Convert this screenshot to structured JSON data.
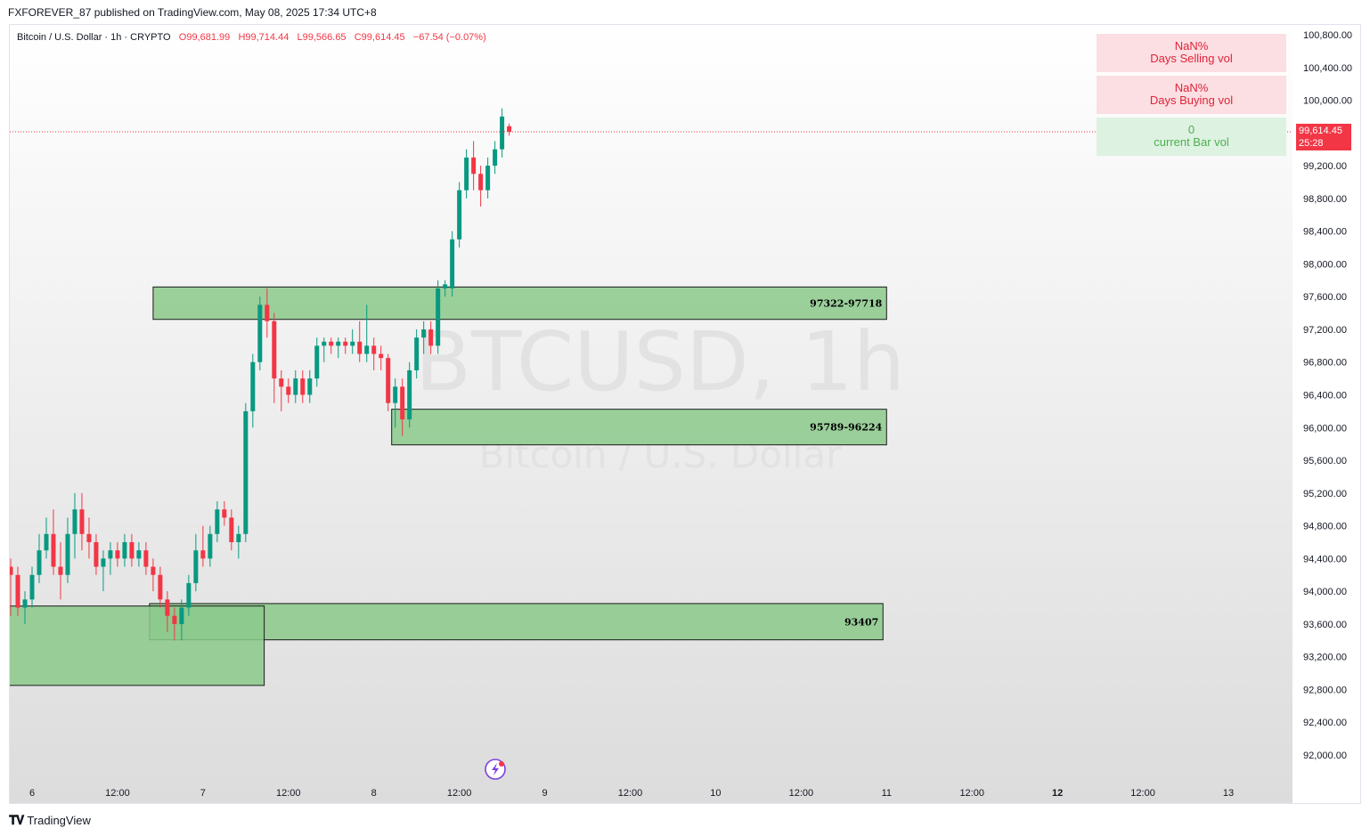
{
  "publisher_line": "FXFOREVER_87 published on TradingView.com, May 08, 2025 17:34 UTC+8",
  "legend": {
    "symbol": "Bitcoin / U.S. Dollar · 1h · CRYPTO",
    "open": "O99,681.99",
    "high": "H99,714.44",
    "low": "L99,566.65",
    "close": "C99,614.45",
    "change": "−67.54 (−0.07%)"
  },
  "watermark": {
    "ticker": "BTCUSD, 1h",
    "name": "Bitcoin / U.S. Dollar"
  },
  "vol_panel": {
    "selling_value": "NaN%",
    "selling_label": "Days Selling vol",
    "buying_value": "NaN%",
    "buying_label": "Days Buying vol",
    "bar_value": "0",
    "bar_label": "current Bar vol"
  },
  "footer": {
    "brand": "TradingView"
  },
  "colors": {
    "up": "#089981",
    "down": "#f23645",
    "zone_fill": "#8bc98b",
    "price_line": "#f23645"
  },
  "chart_data": {
    "type": "candlestick",
    "timeframe": "1h",
    "y_axis": {
      "ticks": [
        92000,
        92400,
        92800,
        93200,
        93600,
        94000,
        94400,
        94800,
        95200,
        95600,
        96000,
        96400,
        96800,
        97200,
        97600,
        98000,
        98400,
        98800,
        99200,
        100000,
        100400,
        100800
      ],
      "tick_labels": [
        "92,000.00",
        "92,400.00",
        "92,800.00",
        "93,200.00",
        "93,600.00",
        "94,000.00",
        "94,400.00",
        "94,800.00",
        "95,200.00",
        "95,600.00",
        "96,000.00",
        "96,400.00",
        "96,800.00",
        "97,200.00",
        "97,600.00",
        "98,000.00",
        "98,400.00",
        "98,800.00",
        "99,200.00",
        "100,000.00",
        "100,400.00",
        "100,800.00"
      ],
      "range": [
        91600,
        101100
      ]
    },
    "x_axis": {
      "labels": [
        "6",
        "12:00",
        "7",
        "12:00",
        "8",
        "12:00",
        "9",
        "12:00",
        "10",
        "12:00",
        "11",
        "12:00",
        "12",
        "12:00",
        "13"
      ],
      "label_hours": [
        0,
        12,
        24,
        36,
        48,
        60,
        72,
        84,
        96,
        108,
        120,
        132,
        144,
        156,
        168
      ],
      "bold": [
        false,
        false,
        false,
        false,
        false,
        false,
        false,
        false,
        false,
        false,
        false,
        false,
        true,
        false,
        false
      ],
      "range_hours": [
        -3.2,
        183
      ]
    },
    "current_price": {
      "value": 99614.45,
      "label": "99,614.45",
      "countdown": "25:28"
    },
    "zones": [
      {
        "label": "97322-97718",
        "low": 97322,
        "high": 97718,
        "from_hours": 17.0,
        "to_hours": 120.0
      },
      {
        "label": "95789-96224",
        "low": 95789,
        "high": 96224,
        "from_hours": 50.5,
        "to_hours": 120.0
      },
      {
        "label": "93407",
        "low": 93407,
        "high": 93850,
        "from_hours": 16.5,
        "to_hours": 119.5
      },
      {
        "label": "",
        "low": 92850,
        "high": 93820,
        "from_hours": -3.2,
        "to_hours": 32.6
      }
    ],
    "candles": [
      {
        "t": -3,
        "o": 94300,
        "h": 94400,
        "l": 93700,
        "c": 94200
      },
      {
        "t": -2,
        "o": 94200,
        "h": 94300,
        "l": 93700,
        "c": 93800
      },
      {
        "t": -1,
        "o": 93800,
        "h": 94000,
        "l": 93600,
        "c": 93900
      },
      {
        "t": 0,
        "o": 93900,
        "h": 94300,
        "l": 93800,
        "c": 94200
      },
      {
        "t": 1,
        "o": 94200,
        "h": 94700,
        "l": 94100,
        "c": 94500
      },
      {
        "t": 2,
        "o": 94500,
        "h": 94900,
        "l": 94400,
        "c": 94700
      },
      {
        "t": 3,
        "o": 94700,
        "h": 95000,
        "l": 94200,
        "c": 94300
      },
      {
        "t": 4,
        "o": 94300,
        "h": 94600,
        "l": 93900,
        "c": 94200
      },
      {
        "t": 5,
        "o": 94200,
        "h": 94900,
        "l": 94100,
        "c": 94700
      },
      {
        "t": 6,
        "o": 94700,
        "h": 95200,
        "l": 94400,
        "c": 95000
      },
      {
        "t": 7,
        "o": 95000,
        "h": 95200,
        "l": 94500,
        "c": 94700
      },
      {
        "t": 8,
        "o": 94700,
        "h": 94900,
        "l": 94400,
        "c": 94600
      },
      {
        "t": 9,
        "o": 94600,
        "h": 94700,
        "l": 94200,
        "c": 94300
      },
      {
        "t": 10,
        "o": 94300,
        "h": 94500,
        "l": 94000,
        "c": 94400
      },
      {
        "t": 11,
        "o": 94400,
        "h": 94600,
        "l": 94200,
        "c": 94500
      },
      {
        "t": 12,
        "o": 94500,
        "h": 94600,
        "l": 94300,
        "c": 94400
      },
      {
        "t": 13,
        "o": 94400,
        "h": 94700,
        "l": 94300,
        "c": 94600
      },
      {
        "t": 14,
        "o": 94600,
        "h": 94700,
        "l": 94300,
        "c": 94400
      },
      {
        "t": 15,
        "o": 94400,
        "h": 94600,
        "l": 94300,
        "c": 94500
      },
      {
        "t": 16,
        "o": 94500,
        "h": 94600,
        "l": 94200,
        "c": 94300
      },
      {
        "t": 17,
        "o": 94300,
        "h": 94400,
        "l": 94000,
        "c": 94200
      },
      {
        "t": 18,
        "o": 94200,
        "h": 94300,
        "l": 93800,
        "c": 93900
      },
      {
        "t": 19,
        "o": 93900,
        "h": 94000,
        "l": 93500,
        "c": 93700
      },
      {
        "t": 20,
        "o": 93700,
        "h": 93800,
        "l": 93400,
        "c": 93600
      },
      {
        "t": 21,
        "o": 93600,
        "h": 93900,
        "l": 93400,
        "c": 93800
      },
      {
        "t": 22,
        "o": 93800,
        "h": 94200,
        "l": 93700,
        "c": 94100
      },
      {
        "t": 23,
        "o": 94100,
        "h": 94700,
        "l": 94000,
        "c": 94500
      },
      {
        "t": 24,
        "o": 94500,
        "h": 94800,
        "l": 94300,
        "c": 94400
      },
      {
        "t": 25,
        "o": 94400,
        "h": 94800,
        "l": 94300,
        "c": 94700
      },
      {
        "t": 26,
        "o": 94700,
        "h": 95100,
        "l": 94600,
        "c": 95000
      },
      {
        "t": 27,
        "o": 95000,
        "h": 95100,
        "l": 94800,
        "c": 94900
      },
      {
        "t": 28,
        "o": 94900,
        "h": 95000,
        "l": 94500,
        "c": 94600
      },
      {
        "t": 29,
        "o": 94600,
        "h": 94800,
        "l": 94400,
        "c": 94700
      },
      {
        "t": 30,
        "o": 94700,
        "h": 96300,
        "l": 94600,
        "c": 96200
      },
      {
        "t": 31,
        "o": 96200,
        "h": 96900,
        "l": 96000,
        "c": 96800
      },
      {
        "t": 32,
        "o": 96800,
        "h": 97600,
        "l": 96700,
        "c": 97500
      },
      {
        "t": 33,
        "o": 97500,
        "h": 97700,
        "l": 97100,
        "c": 97300
      },
      {
        "t": 34,
        "o": 97300,
        "h": 97400,
        "l": 96300,
        "c": 96600
      },
      {
        "t": 35,
        "o": 96600,
        "h": 96700,
        "l": 96200,
        "c": 96500
      },
      {
        "t": 36,
        "o": 96500,
        "h": 96600,
        "l": 96300,
        "c": 96400
      },
      {
        "t": 37,
        "o": 96400,
        "h": 96700,
        "l": 96300,
        "c": 96600
      },
      {
        "t": 38,
        "o": 96600,
        "h": 96700,
        "l": 96300,
        "c": 96400
      },
      {
        "t": 39,
        "o": 96400,
        "h": 96700,
        "l": 96300,
        "c": 96600
      },
      {
        "t": 40,
        "o": 96600,
        "h": 97100,
        "l": 96500,
        "c": 97000
      },
      {
        "t": 41,
        "o": 97000,
        "h": 97100,
        "l": 96800,
        "c": 97050
      },
      {
        "t": 42,
        "o": 97050,
        "h": 97100,
        "l": 96900,
        "c": 97000
      },
      {
        "t": 43,
        "o": 97000,
        "h": 97100,
        "l": 96850,
        "c": 97050
      },
      {
        "t": 44,
        "o": 97050,
        "h": 97100,
        "l": 96900,
        "c": 97000
      },
      {
        "t": 45,
        "o": 97000,
        "h": 97200,
        "l": 96900,
        "c": 97050
      },
      {
        "t": 46,
        "o": 97050,
        "h": 97300,
        "l": 96800,
        "c": 96900
      },
      {
        "t": 47,
        "o": 96900,
        "h": 97500,
        "l": 96800,
        "c": 97000
      },
      {
        "t": 48,
        "o": 97000,
        "h": 97100,
        "l": 96700,
        "c": 96900
      },
      {
        "t": 49,
        "o": 96900,
        "h": 97000,
        "l": 96700,
        "c": 96850
      },
      {
        "t": 50,
        "o": 96850,
        "h": 96900,
        "l": 96200,
        "c": 96300
      },
      {
        "t": 51,
        "o": 96300,
        "h": 96600,
        "l": 96000,
        "c": 96500
      },
      {
        "t": 52,
        "o": 96500,
        "h": 96600,
        "l": 95900,
        "c": 96100
      },
      {
        "t": 53,
        "o": 96100,
        "h": 96800,
        "l": 96000,
        "c": 96700
      },
      {
        "t": 54,
        "o": 96700,
        "h": 97200,
        "l": 96600,
        "c": 97100
      },
      {
        "t": 55,
        "o": 97100,
        "h": 97300,
        "l": 96900,
        "c": 97200
      },
      {
        "t": 56,
        "o": 97200,
        "h": 97300,
        "l": 96900,
        "c": 97000
      },
      {
        "t": 57,
        "o": 97000,
        "h": 97800,
        "l": 96900,
        "c": 97700
      },
      {
        "t": 58,
        "o": 97700,
        "h": 97800,
        "l": 97600,
        "c": 97750
      },
      {
        "t": 59,
        "o": 97700,
        "h": 98400,
        "l": 97600,
        "c": 98300
      },
      {
        "t": 60,
        "o": 98300,
        "h": 99000,
        "l": 98200,
        "c": 98900
      },
      {
        "t": 61,
        "o": 98900,
        "h": 99400,
        "l": 98800,
        "c": 99300
      },
      {
        "t": 62,
        "o": 99300,
        "h": 99500,
        "l": 98900,
        "c": 99100
      },
      {
        "t": 63,
        "o": 99100,
        "h": 99200,
        "l": 98700,
        "c": 98900
      },
      {
        "t": 64,
        "o": 98900,
        "h": 99300,
        "l": 98800,
        "c": 99200
      },
      {
        "t": 65,
        "o": 99200,
        "h": 99500,
        "l": 99100,
        "c": 99400
      },
      {
        "t": 66,
        "o": 99400,
        "h": 99900,
        "l": 99300,
        "c": 99800
      },
      {
        "t": 67,
        "o": 99681.99,
        "h": 99714.44,
        "l": 99566.65,
        "c": 99614.45
      }
    ]
  }
}
